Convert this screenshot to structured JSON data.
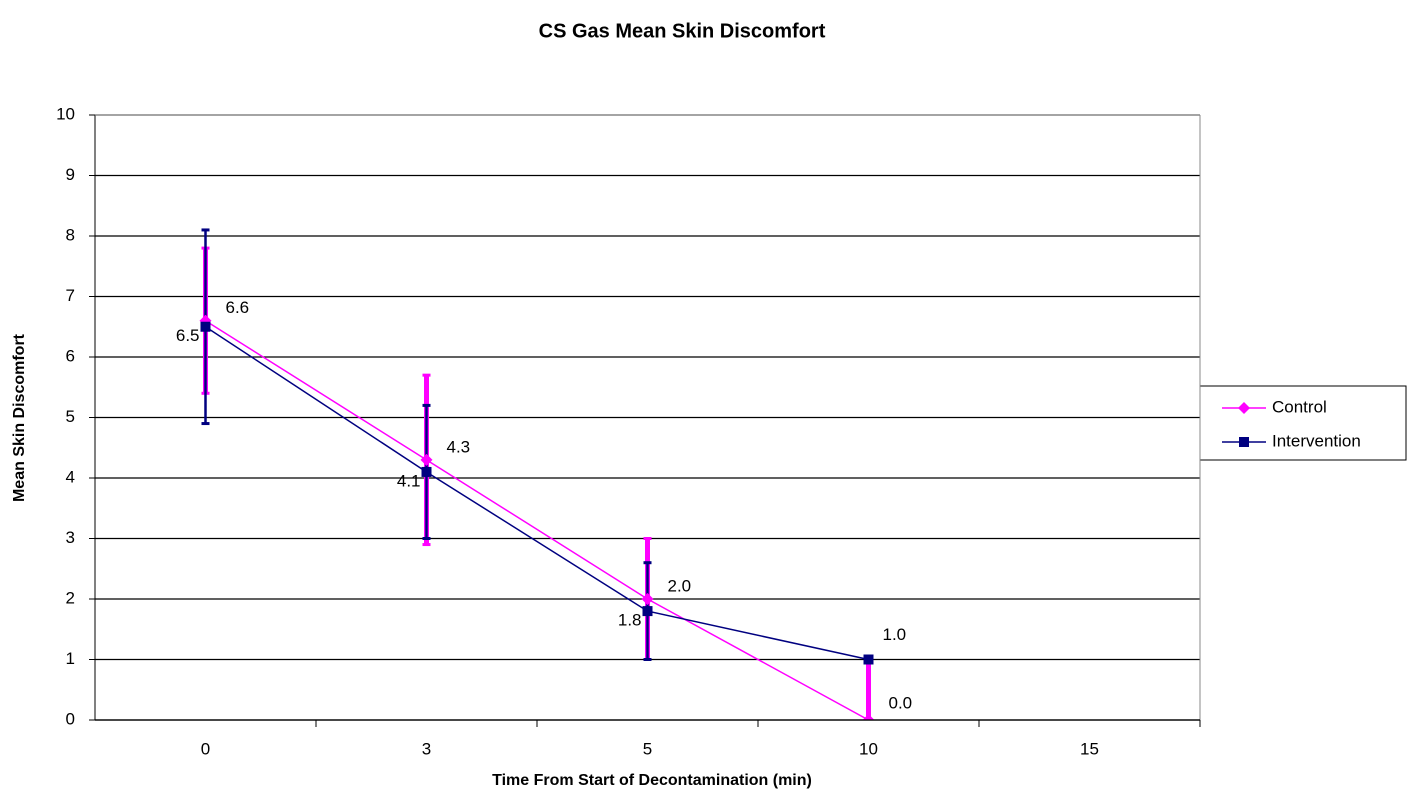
{
  "chart_data": {
    "type": "line",
    "title": "CS Gas Mean Skin Discomfort",
    "x_label": "Time From Start of Decontamination (min)",
    "y_label": "Mean Skin Discomfort",
    "categories": [
      "0",
      "3",
      "5",
      "10",
      "15"
    ],
    "series": [
      {
        "name": "Control",
        "color": "#ff00ff",
        "marker": "diamond",
        "values": [
          6.6,
          4.3,
          2.0,
          0.0,
          null
        ],
        "value_labels": [
          "6.6",
          "4.3",
          "2.0",
          "0.0",
          null
        ],
        "errors": [
          1.2,
          1.4,
          1.0,
          1.0,
          null
        ]
      },
      {
        "name": "Intervention",
        "color": "#000080",
        "marker": "square",
        "values": [
          6.5,
          4.1,
          1.8,
          1.0,
          null
        ],
        "value_labels": [
          "6.5",
          "4.1",
          "1.8",
          "1.0",
          null
        ],
        "errors": [
          1.6,
          1.1,
          0.8,
          0,
          null
        ]
      }
    ],
    "ylim": [
      0,
      10
    ],
    "yticks": [
      0,
      1,
      2,
      3,
      4,
      5,
      6,
      7,
      8,
      9,
      10
    ],
    "grid": true,
    "legend": "right"
  }
}
